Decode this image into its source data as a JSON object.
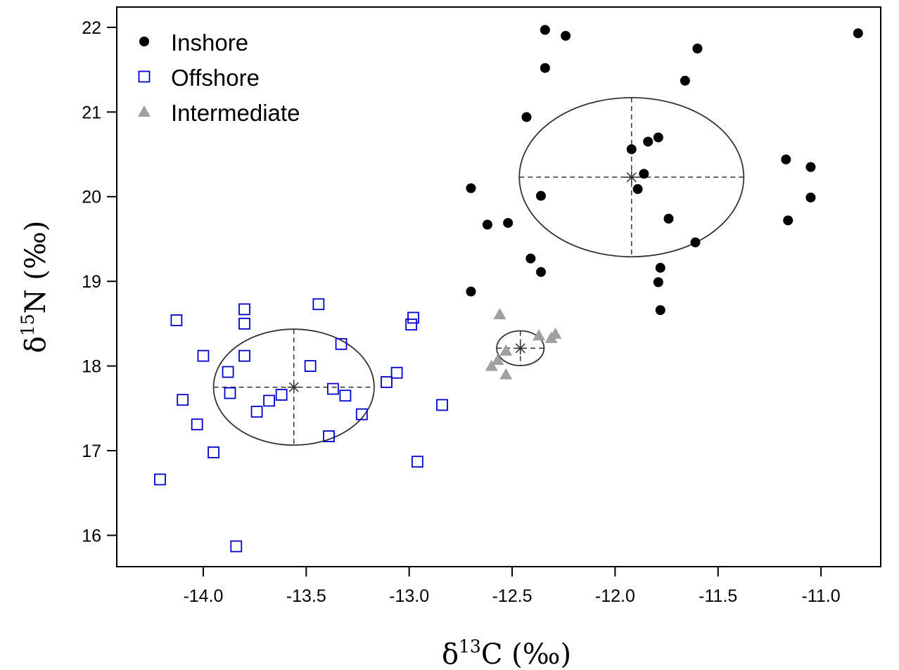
{
  "chart_data": {
    "type": "scatter",
    "xlabel": {
      "prefix": "δ",
      "sup": "13",
      "suffix": "C (‰)"
    },
    "ylabel": {
      "prefix": "δ",
      "sup": "15",
      "suffix": "N (‰)"
    },
    "xlim": [
      -14.42,
      -10.71
    ],
    "ylim": [
      15.63,
      22.24
    ],
    "xticks": [
      {
        "value": -14.0,
        "label": "-14.0"
      },
      {
        "value": -13.5,
        "label": "-13.5"
      },
      {
        "value": -13.0,
        "label": "-13.0"
      },
      {
        "value": -12.5,
        "label": "-12.5"
      },
      {
        "value": -12.0,
        "label": "-12.0"
      },
      {
        "value": -11.5,
        "label": "-11.5"
      },
      {
        "value": -11.0,
        "label": "-11.0"
      }
    ],
    "yticks": [
      {
        "value": 16,
        "label": "16"
      },
      {
        "value": 17,
        "label": "17"
      },
      {
        "value": 18,
        "label": "18"
      },
      {
        "value": 19,
        "label": "19"
      },
      {
        "value": 20,
        "label": "20"
      },
      {
        "value": 21,
        "label": "21"
      },
      {
        "value": 22,
        "label": "22"
      }
    ],
    "grid": false,
    "legend_position": "top-left",
    "series": [
      {
        "name": "Inshore",
        "marker": "filled-circle",
        "color": "#000000",
        "points": [
          [
            -12.34,
            21.97
          ],
          [
            -12.24,
            21.9
          ],
          [
            -10.82,
            21.93
          ],
          [
            -11.6,
            21.75
          ],
          [
            -12.34,
            21.52
          ],
          [
            -11.66,
            21.37
          ],
          [
            -12.43,
            20.94
          ],
          [
            -11.79,
            20.7
          ],
          [
            -11.84,
            20.65
          ],
          [
            -11.92,
            20.56
          ],
          [
            -11.17,
            20.44
          ],
          [
            -11.05,
            20.35
          ],
          [
            -11.86,
            20.27
          ],
          [
            -11.89,
            20.09
          ],
          [
            -12.7,
            20.1
          ],
          [
            -12.36,
            20.01
          ],
          [
            -11.05,
            19.99
          ],
          [
            -11.74,
            19.74
          ],
          [
            -11.16,
            19.72
          ],
          [
            -12.62,
            19.67
          ],
          [
            -12.52,
            19.69
          ],
          [
            -11.61,
            19.46
          ],
          [
            -12.41,
            19.27
          ],
          [
            -11.78,
            19.16
          ],
          [
            -12.36,
            19.11
          ],
          [
            -11.79,
            18.99
          ],
          [
            -12.7,
            18.88
          ],
          [
            -11.78,
            18.66
          ]
        ]
      },
      {
        "name": "Offshore",
        "marker": "open-square",
        "color": "#0000cc",
        "points": [
          [
            -13.44,
            18.73
          ],
          [
            -13.8,
            18.67
          ],
          [
            -12.98,
            18.57
          ],
          [
            -14.13,
            18.54
          ],
          [
            -13.8,
            18.5
          ],
          [
            -12.99,
            18.49
          ],
          [
            -13.33,
            18.26
          ],
          [
            -14.0,
            18.12
          ],
          [
            -13.8,
            18.12
          ],
          [
            -13.48,
            18.0
          ],
          [
            -13.88,
            17.93
          ],
          [
            -13.06,
            17.92
          ],
          [
            -13.11,
            17.81
          ],
          [
            -13.37,
            17.73
          ],
          [
            -13.87,
            17.68
          ],
          [
            -13.62,
            17.66
          ],
          [
            -13.31,
            17.65
          ],
          [
            -14.1,
            17.6
          ],
          [
            -13.68,
            17.59
          ],
          [
            -12.84,
            17.54
          ],
          [
            -13.74,
            17.46
          ],
          [
            -13.23,
            17.43
          ],
          [
            -14.03,
            17.31
          ],
          [
            -13.39,
            17.17
          ],
          [
            -13.95,
            16.98
          ],
          [
            -12.96,
            16.87
          ],
          [
            -14.21,
            16.66
          ],
          [
            -13.84,
            15.87
          ]
        ]
      },
      {
        "name": "Intermediate",
        "marker": "filled-triangle",
        "color": "#a0a0a0",
        "points": [
          [
            -12.56,
            18.61
          ],
          [
            -12.37,
            18.36
          ],
          [
            -12.29,
            18.38
          ],
          [
            -12.31,
            18.33
          ],
          [
            -12.53,
            18.18
          ],
          [
            -12.57,
            18.07
          ],
          [
            -12.6,
            18.0
          ],
          [
            -12.53,
            17.9
          ]
        ]
      }
    ],
    "ellipses": [
      {
        "group": "Inshore",
        "cx": -11.92,
        "cy": 20.23,
        "rx": 0.545,
        "ry": 0.94
      },
      {
        "group": "Offshore",
        "cx": -13.56,
        "cy": 17.75,
        "rx": 0.39,
        "ry": 0.685
      },
      {
        "group": "Intermediate",
        "cx": -12.46,
        "cy": 18.21,
        "rx": 0.115,
        "ry": 0.205
      }
    ]
  }
}
